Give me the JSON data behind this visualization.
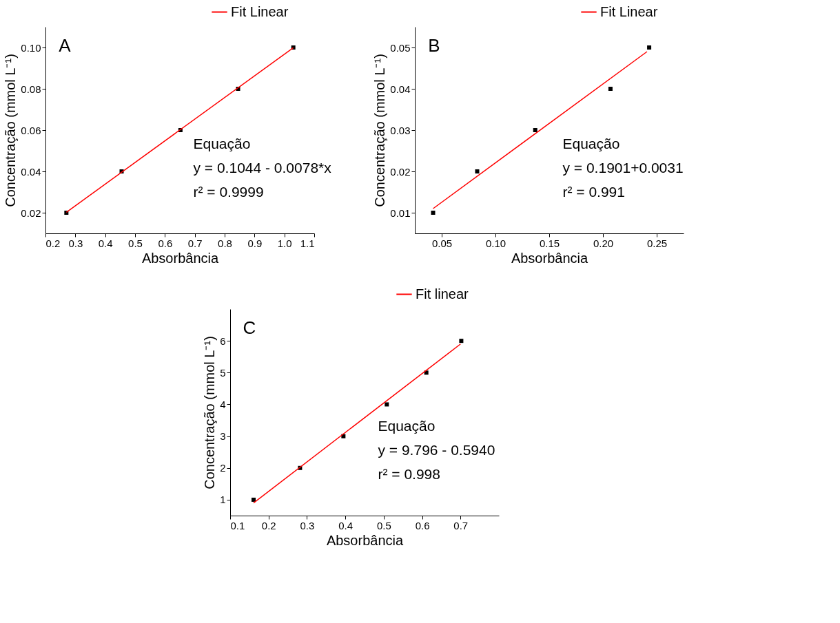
{
  "chart_data": [
    {
      "type": "scatter",
      "xlabel": "Absorbância",
      "ylabel": "Concentração (mmol L⁻¹)",
      "xlim": [
        0.2,
        1.1
      ],
      "ylim": [
        0.01,
        0.11
      ],
      "xticks": [
        0.2,
        0.3,
        0.4,
        0.5,
        0.6,
        0.7,
        0.8,
        0.9,
        {
          "value": 1.0,
          "label": "1.0"
        },
        1.1
      ],
      "yticks": [
        0.02,
        0.04,
        0.06,
        0.08,
        {
          "value": 0.1,
          "label": "0.10"
        }
      ],
      "grid": false,
      "legend": "top right",
      "annotations": [
        "A",
        "Equação",
        "y = 0.1044 - 0.0078*x",
        "r² = 0.9999"
      ],
      "series": [
        {
          "marker": "square",
          "color": "#000000",
          "x": [
            0.27,
            0.455,
            0.652,
            0.845,
            1.03
          ],
          "values": [
            0.02,
            0.04,
            0.06,
            0.08,
            0.1
          ]
        },
        {
          "type": "line",
          "name": "Fit Linear",
          "color": "#ff0000",
          "line_style": "solid",
          "x": [
            0.27,
            1.03
          ],
          "values": [
            0.0202,
            0.0999
          ]
        }
      ]
    },
    {
      "type": "scatter",
      "xlabel": "Absorbância",
      "ylabel": "Concentração (mmol L⁻¹)",
      "xlim": [
        0.025,
        0.275
      ],
      "ylim": [
        0.005,
        0.055
      ],
      "xticks": [
        0.05,
        {
          "value": 0.1,
          "label": "0.10"
        },
        0.15,
        {
          "value": 0.2,
          "label": "0.20"
        },
        0.25
      ],
      "yticks": [
        0.01,
        0.02,
        0.03,
        0.04,
        0.05
      ],
      "grid": false,
      "legend": "top right",
      "annotations": [
        "B",
        "Equação",
        "y = 0.1901+0.0031",
        "r² = 0.991"
      ],
      "series": [
        {
          "marker": "square",
          "color": "#000000",
          "x": [
            0.042,
            0.083,
            0.137,
            0.207,
            0.243
          ],
          "values": [
            0.01,
            0.02,
            0.03,
            0.04,
            0.05
          ]
        },
        {
          "type": "line",
          "name": "Fit Linear",
          "color": "#ff0000",
          "line_style": "solid",
          "x": [
            0.042,
            0.241
          ],
          "values": [
            0.011,
            0.049
          ]
        }
      ]
    },
    {
      "type": "scatter",
      "xlabel": "Absorbância",
      "ylabel": "Concentração (mmol L⁻¹)",
      "xlim": [
        0.1,
        0.8
      ],
      "ylim": [
        0.5,
        7
      ],
      "xticks": [
        0.1,
        0.2,
        0.3,
        0.4,
        0.5,
        0.6,
        0.7
      ],
      "yticks": [
        1,
        2,
        3,
        4,
        5,
        6
      ],
      "grid": false,
      "legend": "top right",
      "annotations": [
        "C",
        "Equação",
        "y = 9.796 - 0.5940",
        "r² = 0.998"
      ],
      "series": [
        {
          "marker": "square",
          "color": "#000000",
          "x": [
            0.161,
            0.282,
            0.395,
            0.508,
            0.611,
            0.702
          ],
          "values": [
            1,
            2,
            3,
            4,
            5,
            6
          ]
        },
        {
          "type": "line",
          "name": "Fit linear",
          "color": "#ff0000",
          "line_style": "solid",
          "x": [
            0.161,
            0.7
          ],
          "values": [
            0.9,
            5.9
          ]
        }
      ]
    }
  ]
}
